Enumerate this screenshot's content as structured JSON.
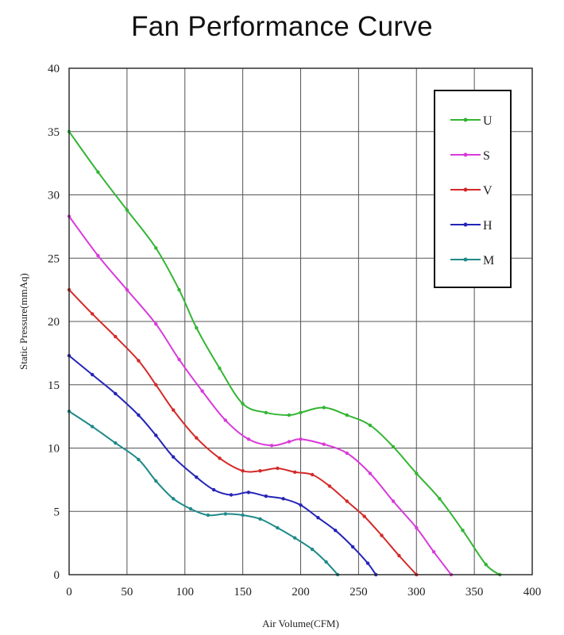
{
  "chart_data": {
    "type": "line",
    "title": "Fan Performance Curve",
    "xlabel": "Air Volume(CFM)",
    "ylabel": "Static Pressure(mmAq)",
    "xlim": [
      0,
      400
    ],
    "ylim": [
      0,
      40
    ],
    "xticks": [
      0,
      50,
      100,
      150,
      200,
      250,
      300,
      350,
      400
    ],
    "yticks": [
      0,
      5,
      10,
      15,
      20,
      25,
      30,
      35,
      40
    ],
    "grid": true,
    "legend_position": "top-right",
    "series": [
      {
        "name": "U",
        "color": "#33b533",
        "points": [
          [
            0,
            35
          ],
          [
            25,
            31.8
          ],
          [
            50,
            28.8
          ],
          [
            75,
            25.8
          ],
          [
            95,
            22.5
          ],
          [
            110,
            19.5
          ],
          [
            130,
            16.3
          ],
          [
            150,
            13.5
          ],
          [
            170,
            12.8
          ],
          [
            190,
            12.6
          ],
          [
            200,
            12.8
          ],
          [
            220,
            13.2
          ],
          [
            240,
            12.6
          ],
          [
            260,
            11.8
          ],
          [
            280,
            10.1
          ],
          [
            300,
            8.0
          ],
          [
            320,
            6.0
          ],
          [
            340,
            3.5
          ],
          [
            360,
            0.8
          ],
          [
            372,
            0
          ]
        ]
      },
      {
        "name": "S",
        "color": "#d93ad9",
        "points": [
          [
            0,
            28.3
          ],
          [
            25,
            25.2
          ],
          [
            50,
            22.5
          ],
          [
            75,
            19.8
          ],
          [
            95,
            17.0
          ],
          [
            115,
            14.5
          ],
          [
            135,
            12.2
          ],
          [
            155,
            10.7
          ],
          [
            175,
            10.2
          ],
          [
            190,
            10.5
          ],
          [
            200,
            10.7
          ],
          [
            220,
            10.3
          ],
          [
            240,
            9.6
          ],
          [
            260,
            8.0
          ],
          [
            280,
            5.8
          ],
          [
            300,
            3.7
          ],
          [
            315,
            1.8
          ],
          [
            330,
            0
          ]
        ]
      },
      {
        "name": "V",
        "color": "#d42a2a",
        "points": [
          [
            0,
            22.5
          ],
          [
            20,
            20.6
          ],
          [
            40,
            18.8
          ],
          [
            60,
            16.9
          ],
          [
            75,
            15.0
          ],
          [
            90,
            13.0
          ],
          [
            110,
            10.8
          ],
          [
            130,
            9.2
          ],
          [
            150,
            8.2
          ],
          [
            165,
            8.2
          ],
          [
            180,
            8.4
          ],
          [
            195,
            8.1
          ],
          [
            210,
            7.9
          ],
          [
            225,
            7.0
          ],
          [
            240,
            5.8
          ],
          [
            255,
            4.6
          ],
          [
            270,
            3.1
          ],
          [
            285,
            1.5
          ],
          [
            300,
            0
          ]
        ]
      },
      {
        "name": "H",
        "color": "#2424b8",
        "points": [
          [
            0,
            17.3
          ],
          [
            20,
            15.8
          ],
          [
            40,
            14.3
          ],
          [
            60,
            12.6
          ],
          [
            75,
            11.0
          ],
          [
            90,
            9.3
          ],
          [
            110,
            7.7
          ],
          [
            125,
            6.7
          ],
          [
            140,
            6.3
          ],
          [
            155,
            6.5
          ],
          [
            170,
            6.2
          ],
          [
            185,
            6.0
          ],
          [
            200,
            5.5
          ],
          [
            215,
            4.5
          ],
          [
            230,
            3.5
          ],
          [
            245,
            2.2
          ],
          [
            258,
            0.9
          ],
          [
            265,
            0
          ]
        ]
      },
      {
        "name": "M",
        "color": "#1f8a8a",
        "points": [
          [
            0,
            12.9
          ],
          [
            20,
            11.7
          ],
          [
            40,
            10.4
          ],
          [
            60,
            9.1
          ],
          [
            75,
            7.4
          ],
          [
            90,
            6.0
          ],
          [
            105,
            5.2
          ],
          [
            120,
            4.7
          ],
          [
            135,
            4.8
          ],
          [
            150,
            4.7
          ],
          [
            165,
            4.4
          ],
          [
            180,
            3.7
          ],
          [
            195,
            2.9
          ],
          [
            210,
            2.0
          ],
          [
            222,
            1.0
          ],
          [
            232,
            0
          ]
        ]
      }
    ]
  }
}
